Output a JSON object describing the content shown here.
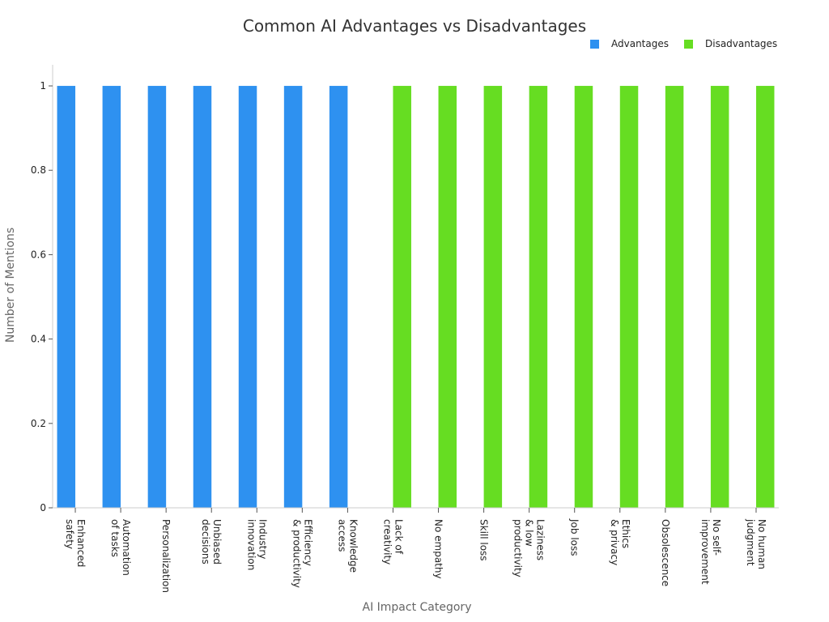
{
  "chart_data": {
    "type": "bar",
    "title": "Common AI Advantages vs Disadvantages",
    "xlabel": "AI Impact Category",
    "ylabel": "Number of Mentions",
    "ylim": [
      0,
      1.05
    ],
    "yticks": [
      "0",
      "0.2",
      "0.4",
      "0.6",
      "0.8",
      "1"
    ],
    "grid": false,
    "legend_position": "top-right",
    "categories": [
      "Enhanced\nsafety",
      "Automation\nof tasks",
      "Personalization",
      "Unbiased\ndecisions",
      "Industry\ninnovation",
      "Efficiency\n& productivity",
      "Knowledge\naccess",
      "Lack of\ncreativity",
      "No empathy",
      "Skill loss",
      "Laziness\n& low\nproductivity",
      "Job loss",
      "Ethics\n& privacy",
      "Obsolescence",
      "No self-\nimprovement",
      "No human\njudgment"
    ],
    "series": [
      {
        "name": "Advantages",
        "color": "#2e91f0",
        "values": [
          1,
          1,
          1,
          1,
          1,
          1,
          1,
          0,
          0,
          0,
          0,
          0,
          0,
          0,
          0,
          0
        ]
      },
      {
        "name": "Disadvantages",
        "color": "#66dd22",
        "values": [
          0,
          0,
          0,
          0,
          0,
          0,
          0,
          1,
          1,
          1,
          1,
          1,
          1,
          1,
          1,
          1
        ]
      }
    ]
  }
}
